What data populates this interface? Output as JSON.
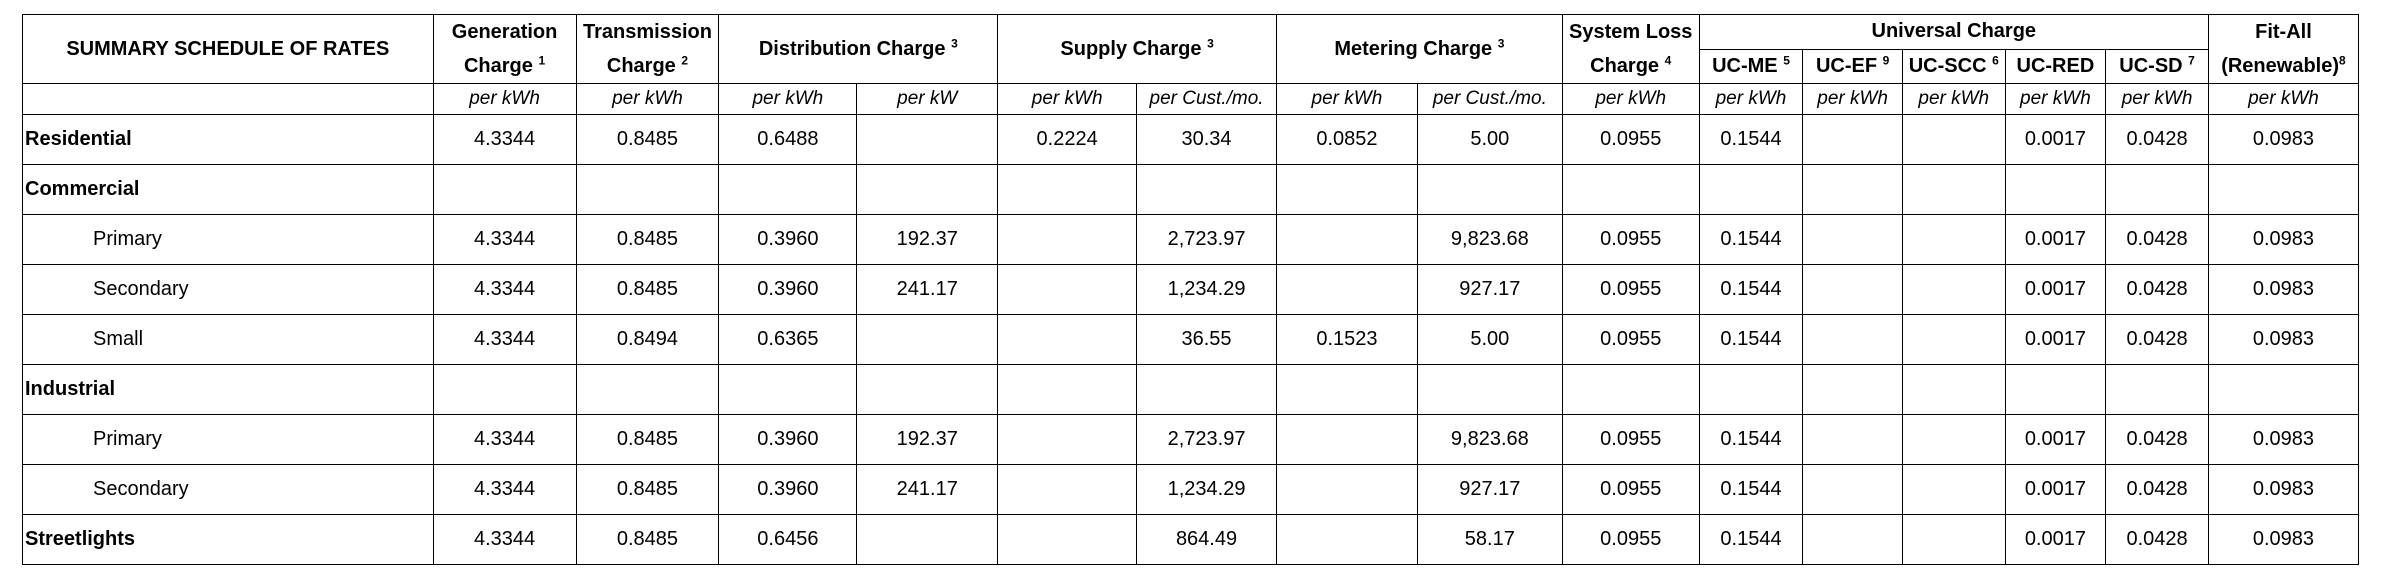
{
  "header": {
    "title": "SUMMARY SCHEDULE OF RATES",
    "generation": {
      "line1": "Generation",
      "line2": "Charge",
      "note": "1"
    },
    "transmission": {
      "line1": "Transmission",
      "line2": "Charge",
      "note": "2"
    },
    "distribution": {
      "label": "Distribution Charge",
      "note": "3"
    },
    "supply": {
      "label": "Supply Charge",
      "note": "3"
    },
    "metering": {
      "label": "Metering Charge",
      "note": "3"
    },
    "system_loss": {
      "line1": "System Loss",
      "line2": "Charge",
      "note": "4"
    },
    "universal": {
      "label": "Universal Charge"
    },
    "uc_me": {
      "label": "UC-ME",
      "note": "5"
    },
    "uc_ef": {
      "label": "UC-EF",
      "note": "9"
    },
    "uc_scc": {
      "label": "UC-SCC",
      "note": "6"
    },
    "uc_red": {
      "label": "UC-RED"
    },
    "uc_sd": {
      "label": "UC-SD",
      "note": "7"
    },
    "fit_all": {
      "line1": "Fit-All",
      "line2": "(Renewable)",
      "note": "8"
    }
  },
  "units": [
    "per kWh",
    "per kWh",
    "per kWh",
    "per kW",
    "per kWh",
    "per Cust./mo.",
    "per kWh",
    "per Cust./mo.",
    "per kWh",
    "per kWh",
    "per kWh",
    "per kWh",
    "per kWh",
    "per kWh",
    "per kWh"
  ],
  "rows": [
    {
      "label": "Residential",
      "cells": [
        "4.3344",
        "0.8485",
        "0.6488",
        "",
        "0.2224",
        "30.34",
        "0.0852",
        "5.00",
        "0.0955",
        "0.1544",
        "",
        "",
        "0.0017",
        "0.0428",
        "0.0983"
      ]
    },
    {
      "label": "Commercial",
      "cells": [
        "",
        "",
        "",
        "",
        "",
        "",
        "",
        "",
        "",
        "",
        "",
        "",
        "",
        "",
        ""
      ]
    },
    {
      "label": "Primary",
      "cells": [
        "4.3344",
        "0.8485",
        "0.3960",
        "192.37",
        "",
        "2,723.97",
        "",
        "9,823.68",
        "0.0955",
        "0.1544",
        "",
        "",
        "0.0017",
        "0.0428",
        "0.0983"
      ]
    },
    {
      "label": "Secondary",
      "cells": [
        "4.3344",
        "0.8485",
        "0.3960",
        "241.17",
        "",
        "1,234.29",
        "",
        "927.17",
        "0.0955",
        "0.1544",
        "",
        "",
        "0.0017",
        "0.0428",
        "0.0983"
      ]
    },
    {
      "label": "Small",
      "cells": [
        "4.3344",
        "0.8494",
        "0.6365",
        "",
        "",
        "36.55",
        "0.1523",
        "5.00",
        "0.0955",
        "0.1544",
        "",
        "",
        "0.0017",
        "0.0428",
        "0.0983"
      ]
    },
    {
      "label": "Industrial",
      "cells": [
        "",
        "",
        "",
        "",
        "",
        "",
        "",
        "",
        "",
        "",
        "",
        "",
        "",
        "",
        ""
      ]
    },
    {
      "label": "Primary",
      "cells": [
        "4.3344",
        "0.8485",
        "0.3960",
        "192.37",
        "",
        "2,723.97",
        "",
        "9,823.68",
        "0.0955",
        "0.1544",
        "",
        "",
        "0.0017",
        "0.0428",
        "0.0983"
      ]
    },
    {
      "label": "Secondary",
      "cells": [
        "4.3344",
        "0.8485",
        "0.3960",
        "241.17",
        "",
        "1,234.29",
        "",
        "927.17",
        "0.0955",
        "0.1544",
        "",
        "",
        "0.0017",
        "0.0428",
        "0.0983"
      ]
    },
    {
      "label": "Streetlights",
      "cells": [
        "4.3344",
        "0.8485",
        "0.6456",
        "",
        "",
        "864.49",
        "",
        "58.17",
        "0.0955",
        "0.1544",
        "",
        "",
        "0.0017",
        "0.0428",
        "0.0983"
      ]
    }
  ]
}
